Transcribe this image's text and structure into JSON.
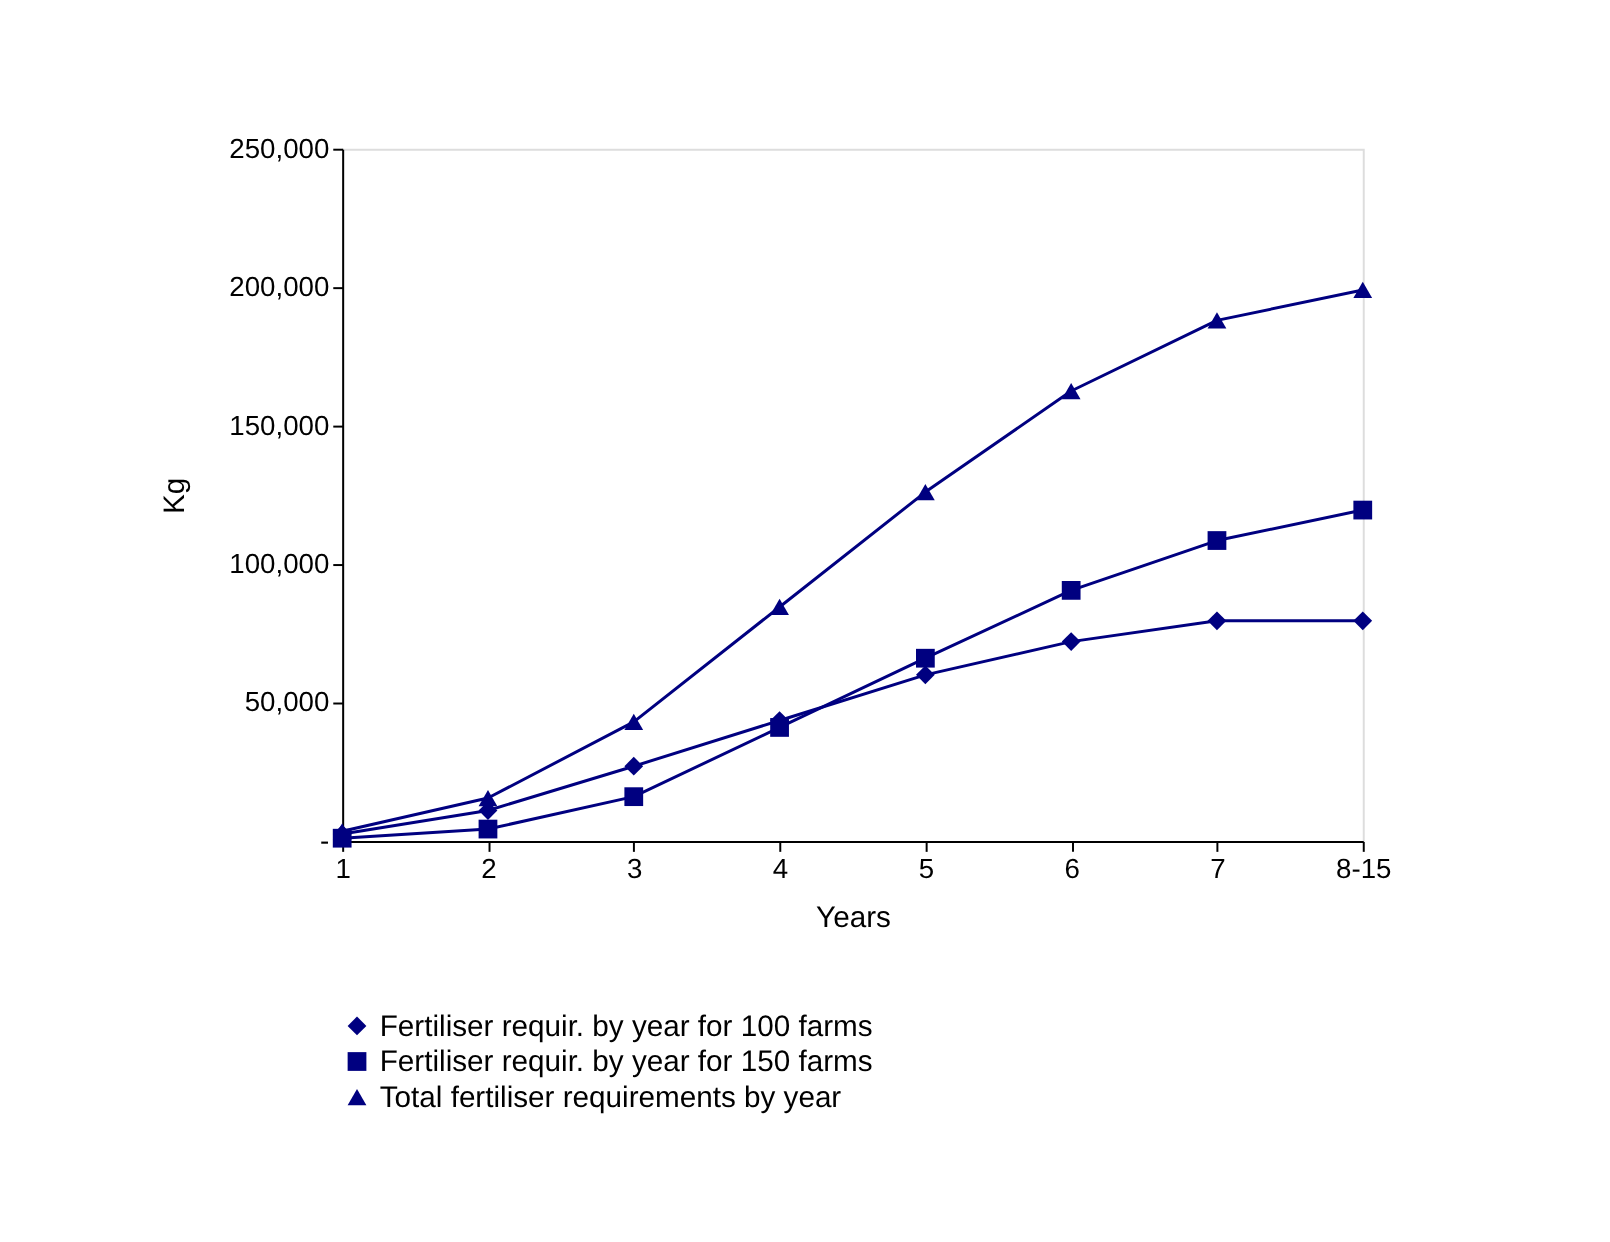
{
  "chart_data": {
    "type": "line",
    "xlabel": "Years",
    "ylabel": "Kg",
    "categories": [
      "1",
      "2",
      "3",
      "4",
      "5",
      "6",
      "7",
      "8-15"
    ],
    "ylim": [
      0,
      250000
    ],
    "yticks": [
      {
        "value": 0,
        "label": "-"
      },
      {
        "value": 50000,
        "label": "50,000"
      },
      {
        "value": 100000,
        "label": "100,000"
      },
      {
        "value": 150000,
        "label": "150,000"
      },
      {
        "value": 200000,
        "label": "200,000"
      },
      {
        "value": 250000,
        "label": "250,000"
      }
    ],
    "grid": false,
    "legend": "bottom",
    "line_style": "solid",
    "series": [
      {
        "name": "Fertiliser requir. by year for 100 farms",
        "color": "#000080",
        "marker": "diamond",
        "values": [
          2500,
          11000,
          27000,
          43500,
          60000,
          72000,
          79500,
          79500
        ]
      },
      {
        "name": "Fertiliser requir. by year for 150 farms",
        "color": "#000080",
        "marker": "square",
        "values": [
          1000,
          4300,
          16000,
          41000,
          66000,
          90500,
          108500,
          119500
        ]
      },
      {
        "name": "Total fertiliser requirements by year",
        "color": "#000080",
        "marker": "triangle",
        "values": [
          3500,
          15500,
          43000,
          84500,
          126000,
          162500,
          188000,
          199000
        ]
      }
    ]
  }
}
